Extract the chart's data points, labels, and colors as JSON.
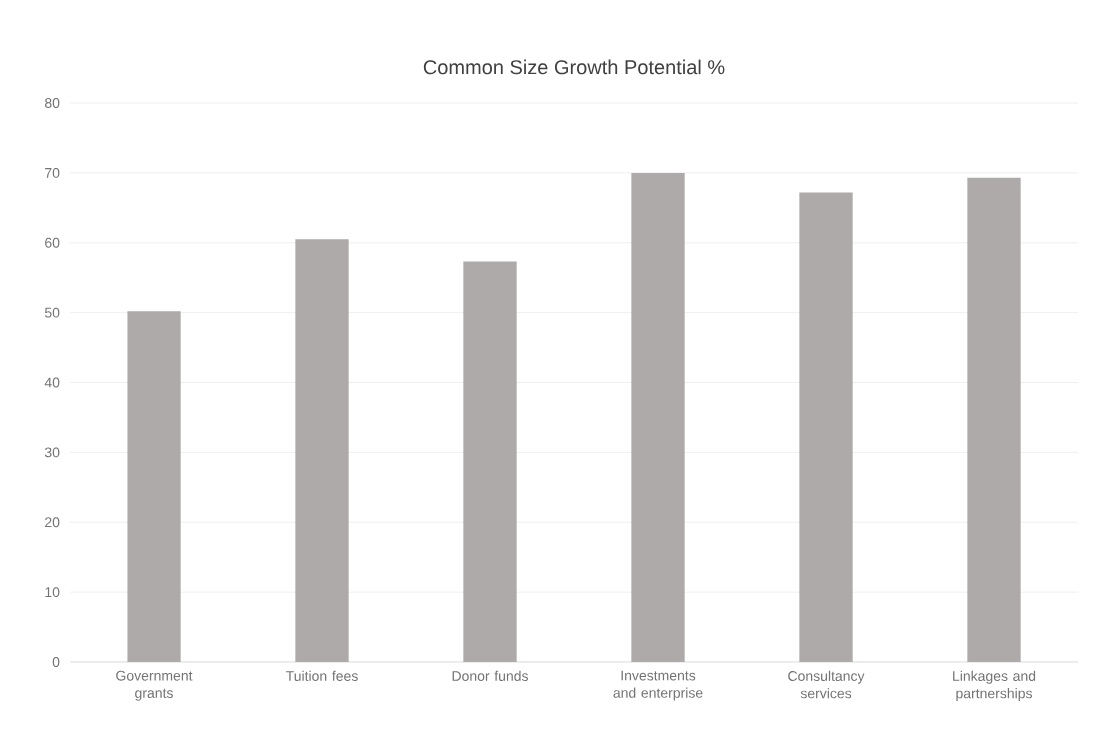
{
  "chart_data": {
    "type": "bar",
    "title": "Common Size Growth Potential %",
    "categories": [
      "Government grants",
      "Tuition fees",
      "Donor funds",
      "Investments and enterprise",
      "Consultancy services",
      "Linkages and partnerships"
    ],
    "values": [
      50.2,
      60.5,
      57.3,
      70,
      67.2,
      69.3
    ],
    "color": "#aeaaaa",
    "ylim": [
      0,
      80
    ],
    "yticks": [
      0,
      10,
      20,
      30,
      40,
      50,
      60,
      70,
      80
    ],
    "grid": "y"
  }
}
